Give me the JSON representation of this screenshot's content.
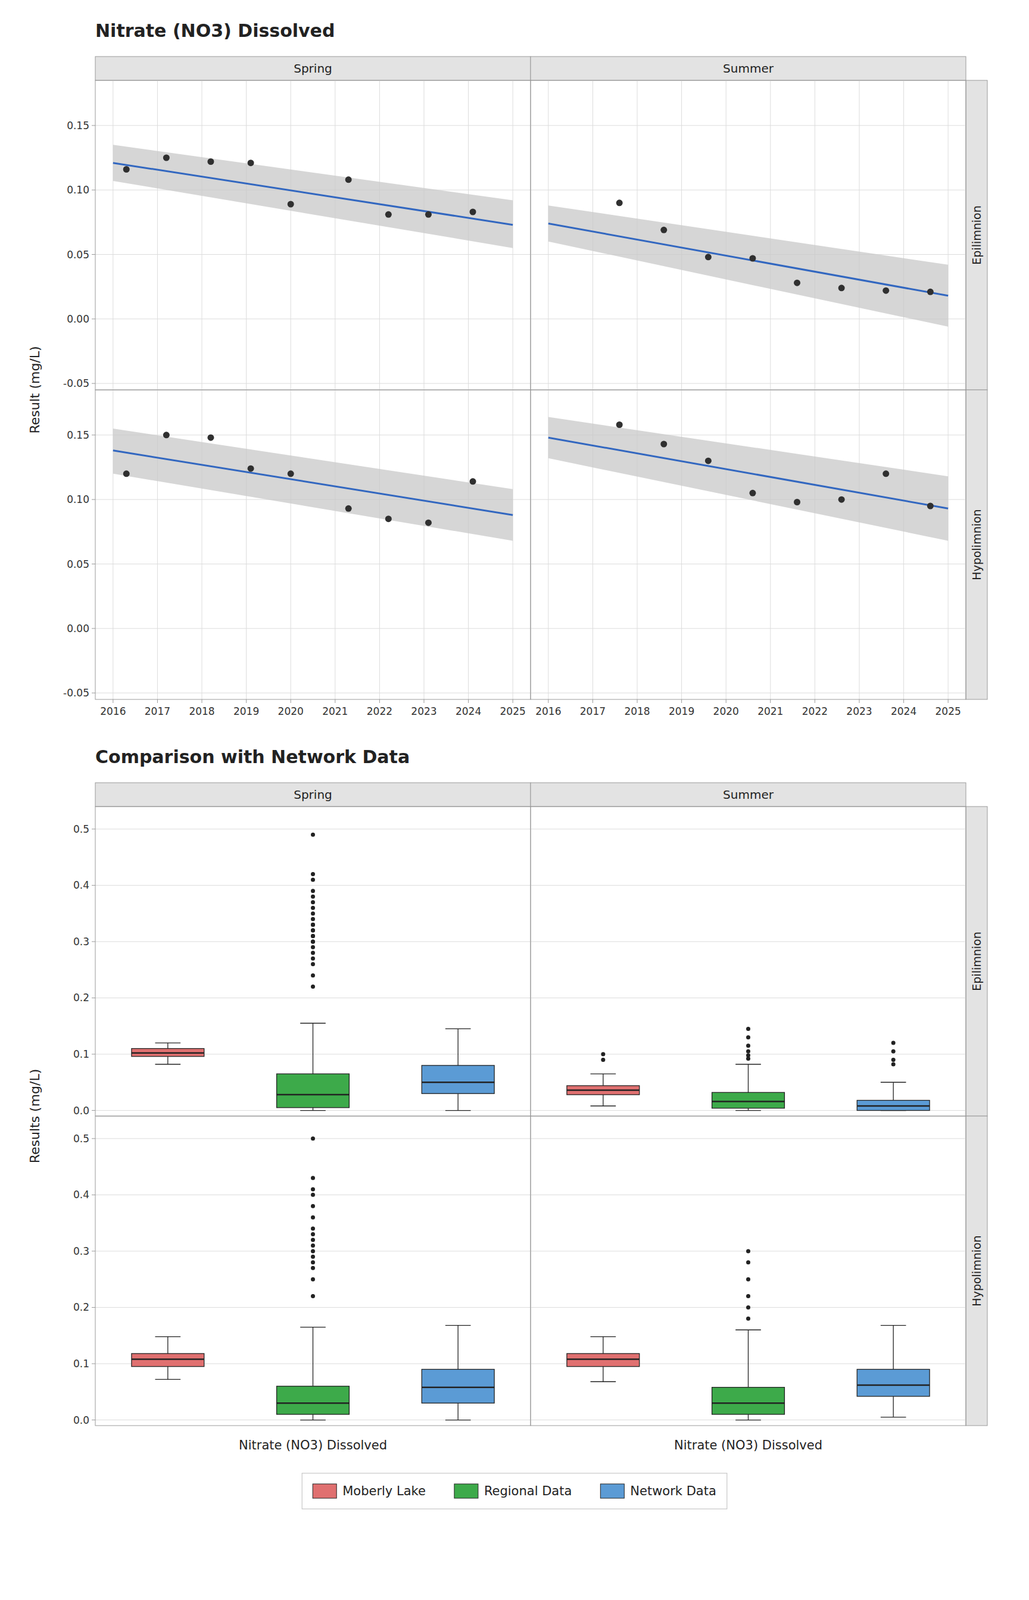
{
  "chart_data": [
    {
      "type": "scatter",
      "title": "Nitrate (NO3) Dissolved",
      "y_label": "Result (mg/L)",
      "columns": [
        "Spring",
        "Summer"
      ],
      "rows": [
        "Epilimnion",
        "Hypolimnion"
      ],
      "xlim": [
        2015.6,
        2025.4
      ],
      "xticks": [
        2016,
        2017,
        2018,
        2019,
        2020,
        2021,
        2022,
        2023,
        2024,
        2025
      ],
      "ylim": [
        -0.055,
        0.185
      ],
      "yticks": [
        -0.05,
        {
          "value": 0.0,
          "label": "0.00"
        },
        0.05,
        {
          "value": 0.1,
          "label": "0.10"
        },
        0.15
      ],
      "grid": true,
      "panels": [
        {
          "column": "Spring",
          "row": "Epilimnion",
          "color": "#303030",
          "x": [
            2016.3,
            2017.2,
            2018.2,
            2019.1,
            2020.0,
            2021.3,
            2022.2,
            2023.1,
            2024.1
          ],
          "values": [
            0.116,
            0.125,
            0.122,
            0.121,
            0.089,
            0.108,
            0.081,
            0.081,
            0.083
          ],
          "trend": {
            "type": "line",
            "color": "#3267C0",
            "x": [
              2016.0,
              2025.0
            ],
            "values": [
              0.121,
              0.073
            ]
          },
          "band": {
            "type": "area",
            "color": "#C8C8C8",
            "upper_x": [
              2016.0,
              2025.0
            ],
            "upper": [
              0.135,
              0.092
            ],
            "lower_x": [
              2016.0,
              2025.0
            ],
            "lower": [
              0.107,
              0.055
            ]
          }
        },
        {
          "column": "Summer",
          "row": "Epilimnion",
          "color": "#303030",
          "x": [
            2017.6,
            2018.6,
            2019.6,
            2020.6,
            2021.6,
            2022.6,
            2023.6,
            2024.6
          ],
          "values": [
            0.09,
            0.069,
            0.048,
            0.047,
            0.028,
            0.024,
            0.022,
            0.021
          ],
          "trend": {
            "type": "line",
            "color": "#3267C0",
            "x": [
              2016.0,
              2025.0
            ],
            "values": [
              0.074,
              0.018
            ]
          },
          "band": {
            "type": "area",
            "color": "#C8C8C8",
            "upper_x": [
              2016.0,
              2025.0
            ],
            "upper": [
              0.088,
              0.042
            ],
            "lower_x": [
              2016.0,
              2025.0
            ],
            "lower": [
              0.06,
              -0.006
            ]
          }
        },
        {
          "column": "Spring",
          "row": "Hypolimnion",
          "color": "#303030",
          "x": [
            2016.3,
            2017.2,
            2018.2,
            2019.1,
            2020.0,
            2021.3,
            2022.2,
            2023.1,
            2024.1
          ],
          "values": [
            0.12,
            0.15,
            0.148,
            0.124,
            0.12,
            0.093,
            0.085,
            0.082,
            0.114
          ],
          "trend": {
            "type": "line",
            "color": "#3267C0",
            "x": [
              2016.0,
              2025.0
            ],
            "values": [
              0.138,
              0.088
            ]
          },
          "band": {
            "type": "area",
            "color": "#C8C8C8",
            "upper_x": [
              2016.0,
              2025.0
            ],
            "upper": [
              0.155,
              0.108
            ],
            "lower_x": [
              2016.0,
              2025.0
            ],
            "lower": [
              0.12,
              0.068
            ]
          }
        },
        {
          "column": "Summer",
          "row": "Hypolimnion",
          "color": "#303030",
          "x": [
            2017.6,
            2018.6,
            2019.6,
            2020.6,
            2021.6,
            2022.6,
            2023.6,
            2024.6
          ],
          "values": [
            0.158,
            0.143,
            0.13,
            0.105,
            0.098,
            0.1,
            0.12,
            0.095
          ],
          "trend": {
            "type": "line",
            "color": "#3267C0",
            "x": [
              2016.0,
              2025.0
            ],
            "values": [
              0.148,
              0.093
            ]
          },
          "band": {
            "type": "area",
            "color": "#C8C8C8",
            "upper_x": [
              2016.0,
              2025.0
            ],
            "upper": [
              0.164,
              0.118
            ],
            "lower_x": [
              2016.0,
              2025.0
            ],
            "lower": [
              0.132,
              0.068
            ]
          }
        }
      ]
    },
    {
      "type": "box",
      "title": "Comparison with Network Data",
      "y_label": "Results (mg/L)",
      "x_label": "Nitrate (NO3) Dissolved",
      "columns": [
        "Spring",
        "Summer"
      ],
      "rows": [
        "Epilimnion",
        "Hypolimnion"
      ],
      "ylim": [
        -0.01,
        0.54
      ],
      "yticks": [
        {
          "value": 0.0,
          "label": "0.0"
        },
        0.1,
        0.2,
        0.3,
        0.4,
        0.5
      ],
      "grid": "y",
      "legend": "bottom",
      "series": [
        {
          "name": "Moberly Lake",
          "color": "#E07070"
        },
        {
          "name": "Regional Data",
          "color": "#3DAA4A"
        },
        {
          "name": "Network Data",
          "color": "#5B9BD5"
        }
      ],
      "panels": [
        {
          "column": "Spring",
          "row": "Epilimnion",
          "boxes": [
            {
              "q1": 0.096,
              "median": 0.102,
              "q3": 0.11,
              "whisker_low": 0.082,
              "whisker_high": 0.12,
              "outliers": []
            },
            {
              "q1": 0.005,
              "median": 0.028,
              "q3": 0.065,
              "whisker_low": 0.0,
              "whisker_high": 0.155,
              "outliers": [
                0.22,
                0.24,
                0.26,
                0.27,
                0.28,
                0.29,
                0.3,
                0.3,
                0.31,
                0.31,
                0.32,
                0.32,
                0.33,
                0.33,
                0.34,
                0.35,
                0.36,
                0.37,
                0.38,
                0.39,
                0.41,
                0.42,
                0.49
              ]
            },
            {
              "q1": 0.03,
              "median": 0.05,
              "q3": 0.08,
              "whisker_low": 0.0,
              "whisker_high": 0.145,
              "outliers": []
            }
          ]
        },
        {
          "column": "Summer",
          "row": "Epilimnion",
          "boxes": [
            {
              "q1": 0.028,
              "median": 0.036,
              "q3": 0.044,
              "whisker_low": 0.008,
              "whisker_high": 0.065,
              "outliers": [
                0.09,
                0.1
              ]
            },
            {
              "q1": 0.004,
              "median": 0.016,
              "q3": 0.032,
              "whisker_low": 0.0,
              "whisker_high": 0.082,
              "outliers": [
                0.092,
                0.098,
                0.105,
                0.115,
                0.13,
                0.145
              ]
            },
            {
              "q1": 0.0,
              "median": 0.008,
              "q3": 0.018,
              "whisker_low": 0.0,
              "whisker_high": 0.05,
              "outliers": [
                0.082,
                0.09,
                0.105,
                0.12
              ]
            }
          ]
        },
        {
          "column": "Spring",
          "row": "Hypolimnion",
          "boxes": [
            {
              "q1": 0.095,
              "median": 0.108,
              "q3": 0.118,
              "whisker_low": 0.072,
              "whisker_high": 0.148,
              "outliers": []
            },
            {
              "q1": 0.01,
              "median": 0.03,
              "q3": 0.06,
              "whisker_low": 0.0,
              "whisker_high": 0.165,
              "outliers": [
                0.22,
                0.25,
                0.27,
                0.28,
                0.29,
                0.3,
                0.31,
                0.32,
                0.33,
                0.34,
                0.36,
                0.38,
                0.4,
                0.41,
                0.43,
                0.5
              ]
            },
            {
              "q1": 0.03,
              "median": 0.058,
              "q3": 0.09,
              "whisker_low": 0.0,
              "whisker_high": 0.168,
              "outliers": []
            }
          ]
        },
        {
          "column": "Summer",
          "row": "Hypolimnion",
          "boxes": [
            {
              "q1": 0.095,
              "median": 0.108,
              "q3": 0.118,
              "whisker_low": 0.068,
              "whisker_high": 0.148,
              "outliers": []
            },
            {
              "q1": 0.01,
              "median": 0.03,
              "q3": 0.058,
              "whisker_low": 0.0,
              "whisker_high": 0.16,
              "outliers": [
                0.18,
                0.2,
                0.22,
                0.25,
                0.28,
                0.3
              ]
            },
            {
              "q1": 0.042,
              "median": 0.062,
              "q3": 0.09,
              "whisker_low": 0.005,
              "whisker_high": 0.168,
              "outliers": []
            }
          ]
        }
      ]
    }
  ]
}
